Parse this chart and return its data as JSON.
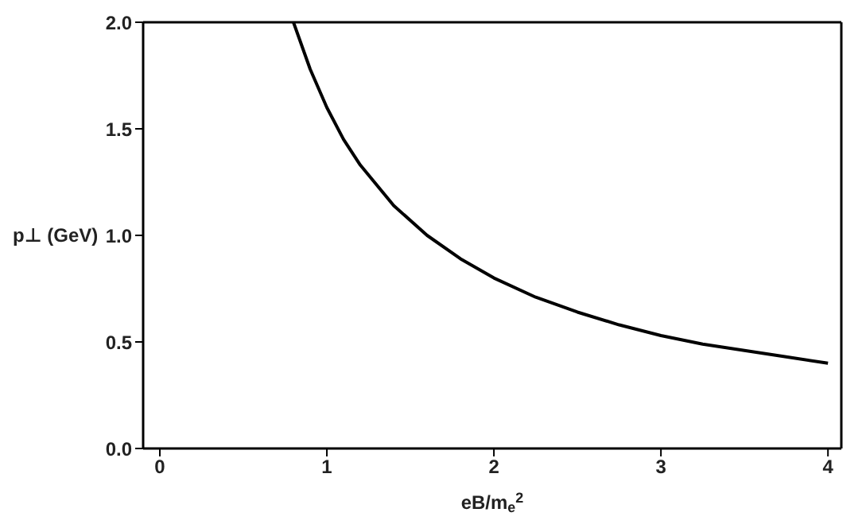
{
  "chart_data": {
    "type": "line",
    "xlabel": "eB/m$_{e}$$^{2}$",
    "ylabel": "p⊥ (GeV)",
    "x": [
      0.8,
      0.9,
      1.0,
      1.1,
      1.2,
      1.4,
      1.6,
      1.8,
      2.0,
      2.25,
      2.5,
      2.75,
      3.0,
      3.25,
      3.5,
      3.75,
      4.0
    ],
    "series": [
      {
        "color": "#000000",
        "values": [
          2.0,
          1.78,
          1.6,
          1.45,
          1.33,
          1.14,
          1.0,
          0.89,
          0.8,
          0.71,
          0.64,
          0.58,
          0.53,
          0.49,
          0.46,
          0.43,
          0.4
        ]
      }
    ],
    "xlim": [
      -0.1,
      4.08
    ],
    "xticks": [
      0,
      1,
      2,
      3,
      4
    ],
    "ylim": [
      0,
      2
    ],
    "yticks": [
      {
        "value": 0,
        "label": "0.0"
      },
      0.5,
      {
        "value": 1,
        "label": "1.0"
      },
      1.5,
      {
        "value": 2,
        "label": "2.0"
      }
    ],
    "grid": false,
    "legend": false,
    "marker": "none",
    "line_style": "solid"
  }
}
